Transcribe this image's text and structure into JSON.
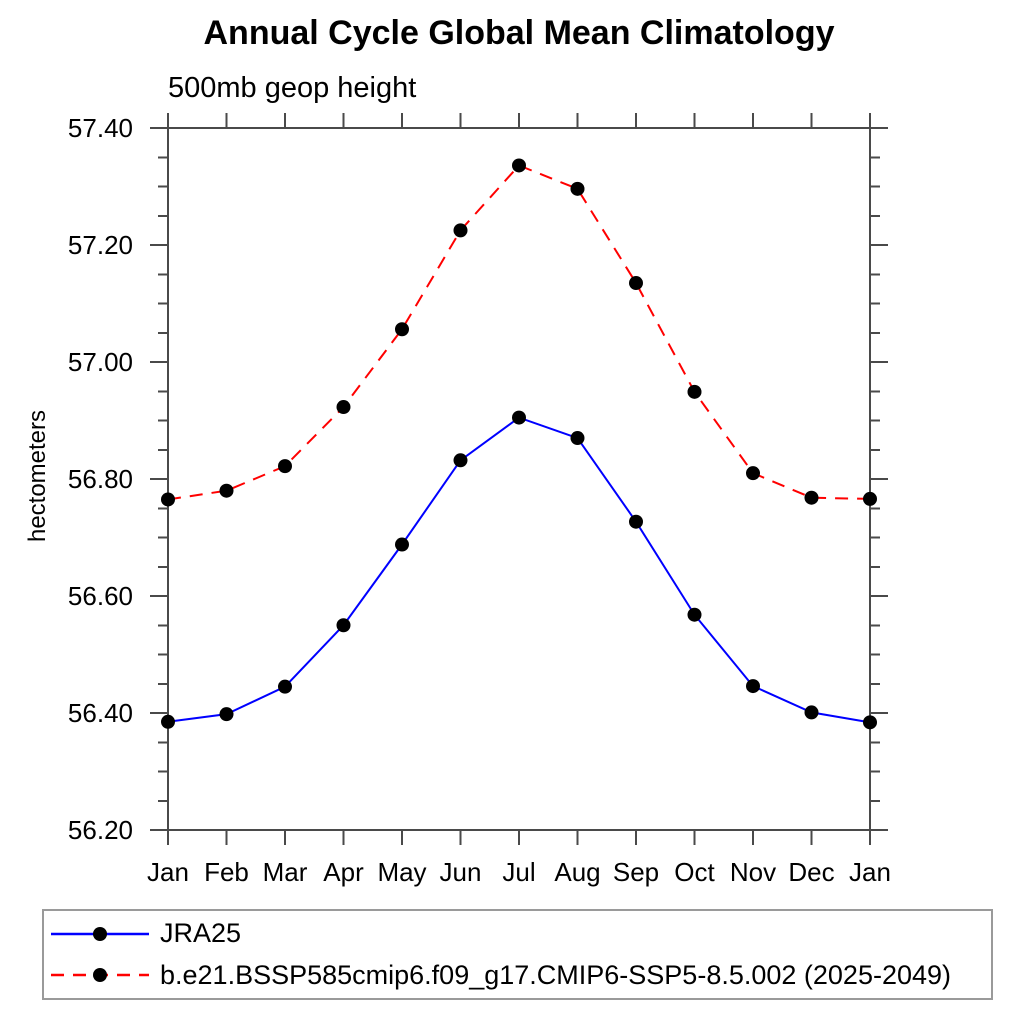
{
  "page": {
    "title": "Annual Cycle Global Mean Climatology",
    "subtitle": "500mb geop height"
  },
  "chart_data": {
    "type": "line",
    "title": "Annual Cycle Global Mean Climatology",
    "subtitle": "500mb geop height",
    "xlabel": "",
    "ylabel": "hectometers",
    "categories": [
      "Jan",
      "Feb",
      "Mar",
      "Apr",
      "May",
      "Jun",
      "Jul",
      "Aug",
      "Sep",
      "Oct",
      "Nov",
      "Dec",
      "Jan"
    ],
    "ylim": [
      56.2,
      57.4
    ],
    "ytick_labels": [
      "56.20",
      "56.40",
      "56.60",
      "56.80",
      "57.00",
      "57.20",
      "57.40"
    ],
    "ytick_interval": 0.2,
    "ytick_minor_interval": 0.05,
    "grid": false,
    "legend_position": "bottom",
    "axis_color": "#4a4a4a",
    "marker_color": "#000000",
    "series": [
      {
        "name": "JRA25",
        "color": "#0000ff",
        "line_style": "solid",
        "marker": "circle",
        "values": [
          56.385,
          56.398,
          56.445,
          56.55,
          56.688,
          56.832,
          56.905,
          56.87,
          56.727,
          56.568,
          56.446,
          56.401,
          56.384
        ]
      },
      {
        "name": "b.e21.BSSP585cmip6.f09_g17.CMIP6-SSP5-8.5.002 (2025-2049)",
        "color": "#ff0000",
        "line_style": "dashed",
        "marker": "circle",
        "values": [
          56.765,
          56.78,
          56.822,
          56.923,
          57.056,
          57.225,
          57.336,
          57.296,
          57.135,
          56.949,
          56.81,
          56.768,
          56.766
        ]
      }
    ]
  }
}
